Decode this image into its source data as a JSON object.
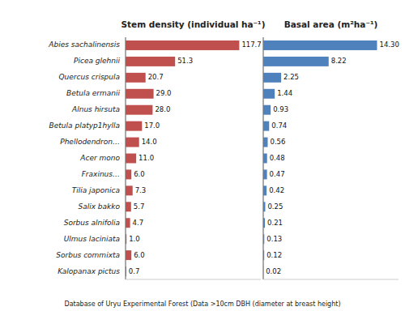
{
  "chart_data": [
    {
      "type": "bar",
      "orientation": "horizontal",
      "title": "Stem density (individual ha⁻¹)",
      "categories": [
        "Abies sachalinensis",
        "Picea glehnii",
        "Quercus crispula",
        "Betula ermanii",
        "Alnus hirsuta",
        "Betula platyp1hylla",
        "Phellodendron…",
        "Acer mono",
        "Fraxinus…",
        "Tilia japonica",
        "Salix bakko",
        "Sorbus alnifolia",
        "Ulmus laciniata",
        "Sorbus commixta",
        "Kalopanax pictus"
      ],
      "values": [
        117.7,
        51.3,
        20.7,
        29.0,
        28.0,
        17.0,
        14.0,
        11.0,
        6.0,
        7.3,
        5.7,
        4.7,
        1.0,
        6.0,
        0.7
      ],
      "value_labels": [
        "117.7",
        "51.3",
        "20.7",
        "29.0",
        "28.0",
        "17.0",
        "14.0",
        "11.0",
        "6.0",
        "7.3",
        "5.7",
        "4.7",
        "1.0",
        "6.0",
        "0.7"
      ],
      "color": "#c0504d",
      "xlim": [
        0,
        140
      ],
      "data_labels": true,
      "tick_labels": false,
      "grid": false,
      "annotations": [
        "Database of Uryu Experimental Forest (Data >10cm DBH (diameter at breast height)"
      ]
    },
    {
      "type": "bar",
      "orientation": "horizontal",
      "title": "Basal area (m²ha⁻¹)",
      "values": [
        14.3,
        8.22,
        2.25,
        1.44,
        0.93,
        0.74,
        0.56,
        0.48,
        0.47,
        0.42,
        0.25,
        0.21,
        0.13,
        0.12,
        0.02
      ],
      "value_labels": [
        "14.30",
        "8.22",
        "2.25",
        "1.44",
        "0.93",
        "0.74",
        "0.56",
        "0.48",
        "0.47",
        "0.42",
        "0.25",
        "0.21",
        "0.13",
        "0.12",
        "0.02"
      ],
      "color": "#4f81bd",
      "xlim": [
        0,
        17
      ],
      "data_labels": true,
      "tick_labels": false,
      "grid": false
    }
  ]
}
